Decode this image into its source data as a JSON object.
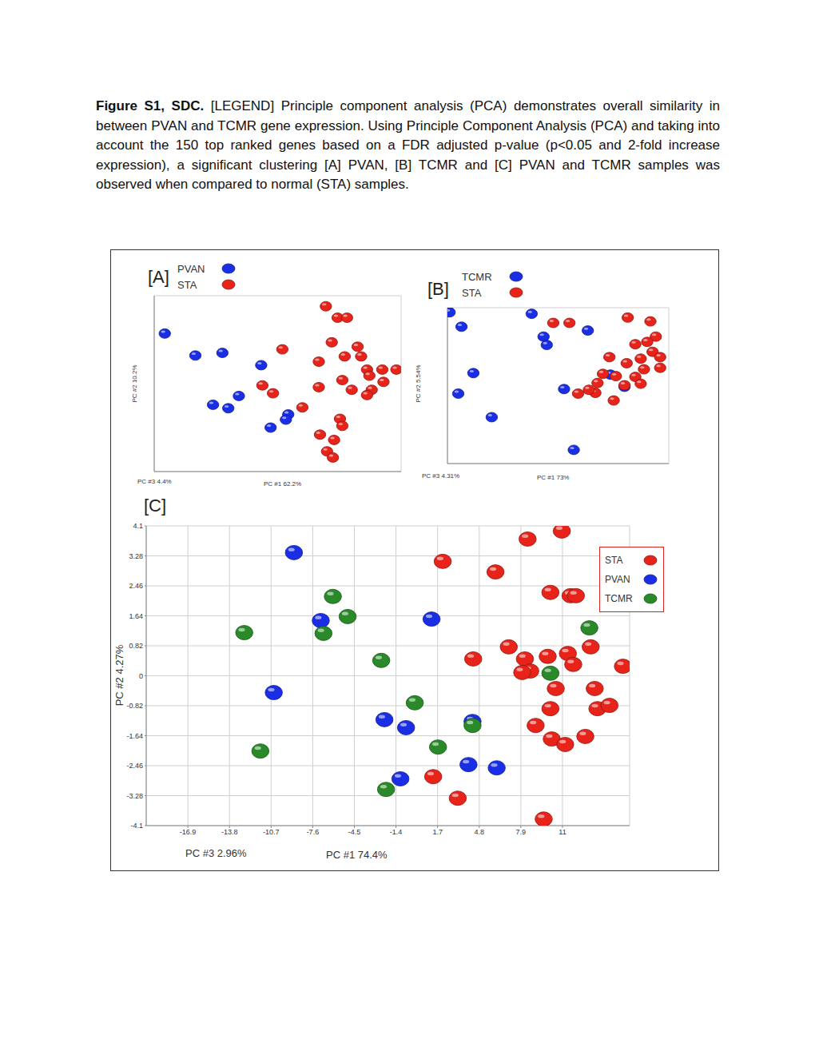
{
  "caption": {
    "label": "Figure S1, SDC.",
    "text": "[LEGEND] Principle component analysis (PCA) demonstrates overall similarity in between PVAN and TCMR gene expression.  Using Principle Component Analysis (PCA) and taking into account the 150 top ranked genes based on a FDR adjusted p-value (p<0.05 and 2-fold increase expression), a significant clustering [A] PVAN, [B] TCMR and [C] PVAN and TCMR samples was observed when compared to normal (STA) samples."
  },
  "chart_data": [
    {
      "type": "scatter",
      "title": "[A]",
      "x_label": "PC #1 62.2%",
      "y_label": "PC #2 10.2%",
      "z_label": "PC #3 4.4%",
      "xlim": [
        -10,
        11
      ],
      "ylim": [
        -10,
        10
      ],
      "xticks": [
        -10,
        -8,
        -6,
        -4,
        -2,
        0,
        2,
        4,
        6,
        8,
        10
      ],
      "yticks": [
        -10,
        -8,
        -6,
        -4,
        -2,
        0,
        2,
        4,
        6,
        8,
        10
      ],
      "tick_labels": false,
      "grid": true,
      "legend": "top-left",
      "series": [
        {
          "name": "PVAN",
          "color": "#1a2ee6",
          "x": [
            -9.1,
            -6.5,
            -4.2,
            -0.9,
            -5.0,
            -3.7,
            -2.8,
            1.4,
            1.2,
            -0.1
          ],
          "y": [
            5.7,
            3.2,
            3.5,
            2.1,
            -2.4,
            -2.8,
            -1.4,
            -3.5,
            -4.1,
            -5.0
          ]
        },
        {
          "name": "STA",
          "color": "#e8231a",
          "x": [
            4.6,
            5.6,
            6.4,
            5.1,
            7.3,
            6.2,
            7.6,
            4.0,
            0.9,
            8.1,
            9.4,
            10.6,
            8.3,
            9.5,
            6.0,
            8.5,
            4.0,
            6.8,
            8.1,
            -0.8,
            0.1,
            2.6,
            5.8,
            6.0,
            4.1,
            5.3,
            4.7,
            5.2
          ],
          "y": [
            8.8,
            7.5,
            7.5,
            4.7,
            4.2,
            3.1,
            3.1,
            2.5,
            3.9,
            1.6,
            1.6,
            1.6,
            0.9,
            0.2,
            0.4,
            -0.7,
            -0.4,
            -0.7,
            -1.3,
            -0.2,
            -1.1,
            -2.7,
            -4.0,
            -4.8,
            -5.8,
            -6.4,
            -7.7,
            -8.4
          ]
        }
      ]
    },
    {
      "type": "scatter",
      "title": "[B]",
      "x_label": "PC #1  73%",
      "y_label": "PC #2 5.54%",
      "z_label": "PC #3 4.31%",
      "xlim": [
        -10,
        10.5
      ],
      "ylim": [
        -10,
        10.5
      ],
      "xticks": [
        -10,
        -8,
        -6,
        -4,
        -2,
        0,
        2,
        4,
        6,
        8,
        10
      ],
      "yticks": [
        -10,
        -8,
        -6,
        -4,
        -2,
        0,
        2,
        4,
        6,
        8,
        10
      ],
      "tick_labels": false,
      "grid": true,
      "legend": "top-left",
      "series": [
        {
          "name": "TCMR",
          "color": "#1a2ee6",
          "x": [
            -9.8,
            -8.7,
            -2.2,
            -1.1,
            -0.8,
            3.0,
            -7.6,
            -9.0,
            -5.9,
            0.8,
            5.1,
            6.4,
            1.7
          ],
          "y": [
            9.9,
            8.0,
            9.7,
            6.7,
            5.6,
            7.5,
            1.9,
            -0.8,
            -3.9,
            -0.2,
            1.7,
            0.1,
            -8.2
          ]
        },
        {
          "name": "STA",
          "color": "#e8231a",
          "x": [
            -0.2,
            1.3,
            6.7,
            8.8,
            9.3,
            7.4,
            8.5,
            9.0,
            7.9,
            9.7,
            5.0,
            6.6,
            8.2,
            9.7,
            4.4,
            3.9,
            5.6,
            7.4,
            6.4,
            7.9,
            2.1,
            3.7,
            3.1,
            5.4
          ],
          "y": [
            8.5,
            8.5,
            9.2,
            8.7,
            6.7,
            5.7,
            6.0,
            4.7,
            3.8,
            4.0,
            4.0,
            3.2,
            2.4,
            2.6,
            1.8,
            0.6,
            1.5,
            1.4,
            0.3,
            0.5,
            -0.8,
            -0.7,
            -0.3,
            -1.7
          ]
        }
      ]
    },
    {
      "type": "scatter",
      "title": "[C]",
      "x_label": "PC #1 74.4%",
      "y_label": "PC #2 4.27%",
      "z_label": "PC #3 2.96%",
      "xlim": [
        -20,
        16
      ],
      "ylim": [
        -4.1,
        4.1
      ],
      "xticks": [
        -16.9,
        -13.8,
        -10.7,
        -7.6,
        -4.5,
        -1.4,
        1.7,
        4.8,
        7.9,
        11
      ],
      "yticks": [
        -4.1,
        -3.28,
        -2.46,
        -1.64,
        -0.82,
        0,
        0.82,
        1.64,
        2.46,
        3.28,
        4.1
      ],
      "grid": true,
      "legend": "top-right",
      "series": [
        {
          "name": "STA",
          "color": "#e8231a",
          "x": [
            8.4,
            10.95,
            2.08,
            6.01,
            10.1,
            11.6,
            12.0,
            7.0,
            4.35,
            8.2,
            8.6,
            9.9,
            11.4,
            13.1,
            11.8,
            15.5,
            8.0,
            13.4,
            10.5,
            10.1,
            13.6,
            14.5,
            9.0,
            10.2,
            11.2,
            12.7,
            1.37,
            3.2,
            9.6
          ],
          "y": [
            3.74,
            3.96,
            3.13,
            2.84,
            2.28,
            2.19,
            2.19,
            0.79,
            0.46,
            0.46,
            0.13,
            0.53,
            0.61,
            0.79,
            0.31,
            0.26,
            0.09,
            -0.35,
            -0.35,
            -0.9,
            -0.9,
            -0.81,
            -1.36,
            -1.73,
            -1.88,
            -1.66,
            -2.76,
            -3.35,
            -3.92
          ]
        },
        {
          "name": "PVAN",
          "color": "#1a2ee6",
          "x": [
            -9.0,
            -7.0,
            1.25,
            -10.5,
            -2.26,
            -0.65,
            4.3,
            -1.07,
            4.0,
            6.1
          ],
          "y": [
            3.37,
            1.51,
            1.55,
            -0.46,
            -1.2,
            -1.42,
            -1.25,
            -2.82,
            -2.43,
            -2.52
          ]
        },
        {
          "name": "TCMR",
          "color": "#2a8a2a",
          "x": [
            -6.1,
            -5.0,
            -12.7,
            -6.8,
            -2.5,
            13.0,
            10.1,
            0,
            1.73,
            -11.5,
            -2.14,
            4.3
          ],
          "y": [
            2.17,
            1.62,
            1.18,
            1.16,
            0.42,
            1.31,
            0.07,
            -0.74,
            -1.95,
            -2.06,
            -3.11,
            -1.36
          ]
        }
      ]
    }
  ]
}
